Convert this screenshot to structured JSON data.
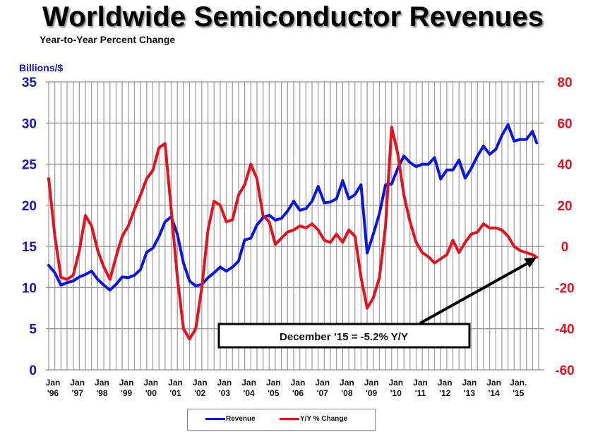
{
  "colors": {
    "revenue": "#0a14e6",
    "yoy": "#e8101c",
    "left_axis": "#1414c8",
    "right_axis": "#e8101c",
    "grid": "#a0a0a0"
  },
  "chart_data": {
    "type": "line",
    "title": "Worldwide Semiconductor Revenues",
    "subtitle": "Year-to-Year Percent Change",
    "ylabel_left": "Billions/$",
    "ylim_left": [
      0,
      35
    ],
    "yticks_left": [
      "0",
      "5",
      "10",
      "15",
      "20",
      "25",
      "30",
      "35"
    ],
    "ylim_right": [
      -60,
      80
    ],
    "yticks_right": [
      "-60",
      "-40",
      "-20",
      "0",
      "20",
      "40",
      "60",
      "80"
    ],
    "xlim": [
      1996,
      2016
    ],
    "xticks": [
      {
        "top": "Jan",
        "bottom": "'96"
      },
      {
        "top": "Jan",
        "bottom": "'97"
      },
      {
        "top": "Jan",
        "bottom": "'98"
      },
      {
        "top": "Jan",
        "bottom": "'99"
      },
      {
        "top": "Jan",
        "bottom": "'00"
      },
      {
        "top": "Jan",
        "bottom": "'01"
      },
      {
        "top": "Jan",
        "bottom": "'02"
      },
      {
        "top": "Jan",
        "bottom": "'03"
      },
      {
        "top": "Jan",
        "bottom": "'04"
      },
      {
        "top": "Jan",
        "bottom": "'05"
      },
      {
        "top": "Jan",
        "bottom": "'06"
      },
      {
        "top": "Jan",
        "bottom": "'07"
      },
      {
        "top": "Jan",
        "bottom": "'08"
      },
      {
        "top": "Jan",
        "bottom": "'09"
      },
      {
        "top": "Jan",
        "bottom": "'10"
      },
      {
        "top": "Jan",
        "bottom": "'11"
      },
      {
        "top": "Jan",
        "bottom": "'12"
      },
      {
        "top": "Jan",
        "bottom": "'13"
      },
      {
        "top": "Jan",
        "bottom": "'14"
      },
      {
        "top": "Jan.",
        "bottom": "'15"
      }
    ],
    "grid": true,
    "legend": {
      "position": "bottom",
      "entries": [
        "Revenue",
        "Y/Y % Change"
      ]
    },
    "annotation": "December ’15 = -5.2% Y/Y",
    "x": [
      1996.0,
      1996.25,
      1996.5,
      1996.75,
      1997.0,
      1997.25,
      1997.5,
      1997.75,
      1998.0,
      1998.25,
      1998.5,
      1998.75,
      1999.0,
      1999.25,
      1999.5,
      1999.75,
      2000.0,
      2000.25,
      2000.5,
      2000.75,
      2001.0,
      2001.25,
      2001.5,
      2001.75,
      2002.0,
      2002.25,
      2002.5,
      2002.75,
      2003.0,
      2003.25,
      2003.5,
      2003.75,
      2004.0,
      2004.25,
      2004.5,
      2004.75,
      2005.0,
      2005.25,
      2005.5,
      2005.75,
      2006.0,
      2006.25,
      2006.5,
      2006.75,
      2007.0,
      2007.25,
      2007.5,
      2007.75,
      2008.0,
      2008.25,
      2008.5,
      2008.75,
      2009.0,
      2009.25,
      2009.5,
      2009.75,
      2010.0,
      2010.25,
      2010.5,
      2010.75,
      2011.0,
      2011.25,
      2011.5,
      2011.75,
      2012.0,
      2012.25,
      2012.5,
      2012.75,
      2013.0,
      2013.25,
      2013.5,
      2013.75,
      2014.0,
      2014.25,
      2014.5,
      2014.75,
      2015.0,
      2015.25,
      2015.5,
      2015.75,
      2015.92
    ],
    "series": [
      {
        "name": "Revenue",
        "axis": "left",
        "values": [
          12.7,
          11.8,
          10.3,
          10.6,
          10.8,
          11.3,
          11.6,
          12.0,
          11.0,
          10.3,
          9.7,
          10.4,
          11.3,
          11.2,
          11.5,
          12.2,
          14.3,
          14.8,
          16.2,
          18.0,
          18.6,
          16.5,
          13.0,
          10.8,
          10.2,
          10.4,
          11.2,
          11.8,
          12.5,
          12.0,
          12.5,
          13.2,
          15.8,
          16.0,
          17.6,
          18.5,
          18.8,
          18.2,
          18.4,
          19.3,
          20.5,
          19.4,
          19.6,
          20.5,
          22.3,
          20.3,
          20.4,
          20.8,
          23.0,
          20.8,
          21.3,
          22.5,
          14.2,
          16.5,
          19.0,
          22.5,
          22.6,
          24.5,
          26.0,
          25.2,
          24.7,
          25.0,
          25.0,
          25.8,
          23.2,
          24.3,
          24.3,
          25.5,
          23.3,
          24.5,
          26.0,
          27.2,
          26.2,
          26.8,
          28.5,
          29.8,
          27.8,
          28.0,
          28.0,
          29.0,
          27.6
        ]
      },
      {
        "name": "Y/Y % Change",
        "axis": "right",
        "values": [
          33,
          5,
          -15,
          -16,
          -14,
          -2,
          15,
          10,
          -2,
          -10,
          -16,
          -5,
          5,
          10,
          18,
          25,
          33,
          37,
          48,
          50,
          18,
          -15,
          -40,
          -45,
          -40,
          -20,
          8,
          22,
          20,
          12,
          13,
          25,
          30,
          40,
          33,
          15,
          12,
          1,
          4,
          7,
          8,
          10,
          9,
          11,
          8,
          3,
          2,
          6,
          2,
          8,
          5,
          -15,
          -30,
          -25,
          -15,
          10,
          58,
          45,
          25,
          12,
          2,
          -3,
          -5,
          -8,
          -6,
          -4,
          3,
          -3,
          2,
          6,
          7,
          11,
          9,
          9,
          8,
          5,
          0,
          -2,
          -3,
          -4,
          -5.2
        ]
      }
    ]
  }
}
